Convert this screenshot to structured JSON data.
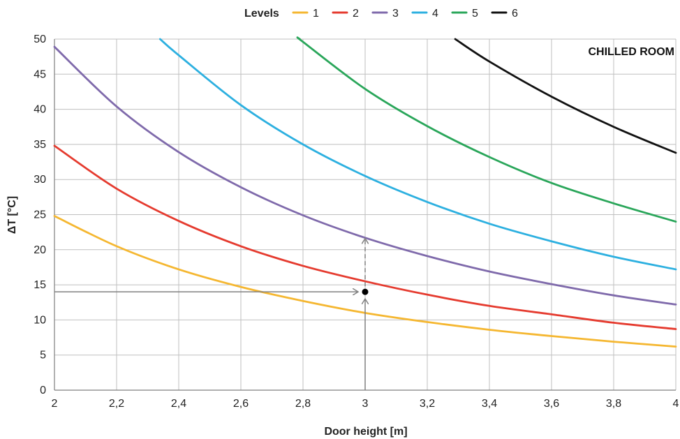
{
  "chart_data": {
    "type": "line",
    "title": "",
    "xlabel": "Door height [m]",
    "ylabel": "ΔT [°C]",
    "xlim": [
      2,
      4
    ],
    "ylim": [
      0,
      50
    ],
    "x_ticks": [
      2,
      2.2,
      2.4,
      2.6,
      2.8,
      3,
      3.2,
      3.4,
      3.6,
      3.8,
      4
    ],
    "x_tick_labels": [
      "2",
      "2,2",
      "2,4",
      "2,6",
      "2,8",
      "3",
      "3,2",
      "3,4",
      "3,6",
      "3,8",
      "4"
    ],
    "y_ticks": [
      0,
      5,
      10,
      15,
      20,
      25,
      30,
      35,
      40,
      45,
      50
    ],
    "y_tick_labels": [
      "0",
      "5",
      "10",
      "15",
      "20",
      "25",
      "30",
      "35",
      "40",
      "45",
      "50"
    ],
    "grid": true,
    "legend": {
      "title": "Levels",
      "placement": "top-center"
    },
    "annotation": "CHILLED ROOM",
    "series": [
      {
        "name": "1",
        "color": "#f5b731",
        "x": [
          2,
          2.2,
          2.4,
          2.6,
          2.8,
          3,
          3.2,
          3.4,
          3.6,
          3.8,
          4
        ],
        "y": [
          24.8,
          20.5,
          17.2,
          14.7,
          12.7,
          11.0,
          9.7,
          8.6,
          7.7,
          6.9,
          6.2
        ]
      },
      {
        "name": "2",
        "color": "#e53b2f",
        "x": [
          2,
          2.2,
          2.4,
          2.6,
          2.8,
          3,
          3.2,
          3.4,
          3.6,
          3.8,
          4
        ],
        "y": [
          34.8,
          28.7,
          24.1,
          20.5,
          17.7,
          15.5,
          13.6,
          12.0,
          10.8,
          9.6,
          8.7
        ]
      },
      {
        "name": "3",
        "color": "#7f6aab",
        "x": [
          2,
          2.2,
          2.4,
          2.6,
          2.8,
          3,
          3.2,
          3.4,
          3.6,
          3.8,
          4
        ],
        "y": [
          48.9,
          40.4,
          33.9,
          28.9,
          24.9,
          21.7,
          19.1,
          16.9,
          15.1,
          13.5,
          12.2
        ]
      },
      {
        "name": "4",
        "color": "#2db0e0",
        "x": [
          2.34,
          2.4,
          2.6,
          2.8,
          3,
          3.2,
          3.4,
          3.6,
          3.8,
          4
        ],
        "y": [
          50,
          47.7,
          40.6,
          35.0,
          30.5,
          26.8,
          23.7,
          21.2,
          19.0,
          17.2
        ]
      },
      {
        "name": "5",
        "color": "#2aa65a",
        "x": [
          2.79,
          2.8,
          3,
          3.2,
          3.4,
          3.6,
          3.8,
          4
        ],
        "y": [
          50,
          49.6,
          42.9,
          37.6,
          33.2,
          29.5,
          26.6,
          24.0
        ]
      },
      {
        "name": "6",
        "color": "#111111",
        "x": [
          3.29,
          3.4,
          3.6,
          3.8,
          4
        ],
        "y": [
          50,
          46.8,
          41.8,
          37.5,
          33.8
        ]
      }
    ],
    "guide_point": {
      "x": 3,
      "y": 14
    }
  }
}
